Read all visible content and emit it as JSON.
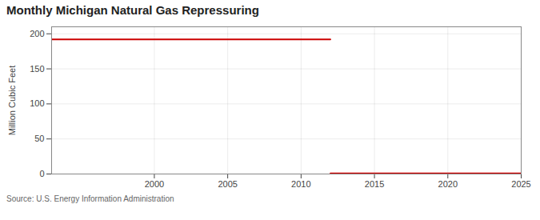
{
  "chart_data": {
    "type": "line",
    "title": "Monthly Michigan Natural Gas Repressuring",
    "ylabel": "Million Cubic Feet",
    "source": "Source: U.S. Energy Information Administration",
    "series": [
      {
        "color": "#cc0000",
        "x": [
          1993,
          2012
        ],
        "values": [
          192,
          192
        ]
      },
      {
        "color": "#cc0000",
        "x": [
          2012,
          2025
        ],
        "values": [
          1,
          1
        ]
      }
    ],
    "xlim": [
      1993,
      2025
    ],
    "xticks": [
      2000,
      2005,
      2010,
      2015,
      2020,
      2025
    ],
    "ylim": [
      0,
      210
    ],
    "yticks": [
      0,
      50,
      100,
      150,
      200
    ],
    "grid": true
  }
}
